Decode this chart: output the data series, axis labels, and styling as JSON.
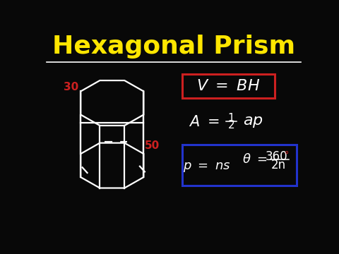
{
  "background_color": "#080808",
  "title": "Hexagonal Prism",
  "title_color": "#FFE600",
  "title_fontsize": 26,
  "separator_color": "white",
  "label_30_color": "#cc2020",
  "label_50_color": "#cc2020",
  "formula_color": "white",
  "red_box_color": "#cc2020",
  "blue_box_color": "#2233cc",
  "hex_color": "white",
  "lw": 1.6
}
